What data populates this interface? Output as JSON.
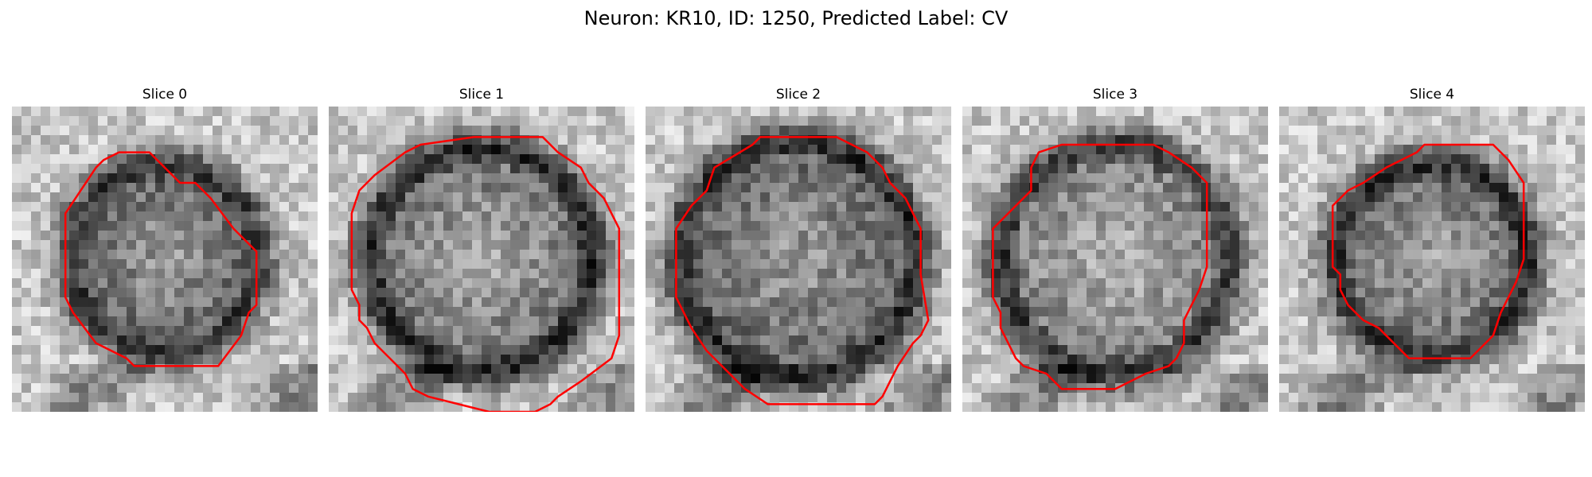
{
  "figure": {
    "title": "Neuron: KR10, ID: 1250, Predicted Label: CV"
  },
  "colors": {
    "contour": "#ff0000",
    "background": "#ffffff"
  },
  "slices": [
    {
      "title": "Slice 0",
      "ring_darkness": 0.55,
      "ring_radius": 0.3,
      "center_brightness": 0.62,
      "contour": [
        [
          14,
          6
        ],
        [
          18,
          6
        ],
        [
          22,
          10
        ],
        [
          24,
          10
        ],
        [
          26,
          12
        ],
        [
          29,
          16
        ],
        [
          32,
          19
        ],
        [
          32,
          26
        ],
        [
          31,
          27
        ],
        [
          30,
          30
        ],
        [
          27,
          34
        ],
        [
          16,
          34
        ],
        [
          15,
          33
        ],
        [
          11,
          31
        ],
        [
          8,
          27
        ],
        [
          7,
          25
        ],
        [
          7,
          14
        ],
        [
          9,
          11
        ],
        [
          11,
          8
        ],
        [
          12,
          7
        ]
      ]
    },
    {
      "title": "Slice 1",
      "ring_darkness": 0.6,
      "ring_radius": 0.36,
      "center_brightness": 0.68,
      "contour": [
        [
          12,
          5
        ],
        [
          19,
          4
        ],
        [
          28,
          4
        ],
        [
          30,
          6
        ],
        [
          33,
          8
        ],
        [
          34,
          10
        ],
        [
          36,
          12
        ],
        [
          37,
          14
        ],
        [
          38,
          16
        ],
        [
          38,
          30
        ],
        [
          37,
          33
        ],
        [
          33,
          36
        ],
        [
          30,
          38
        ],
        [
          29,
          39
        ],
        [
          27,
          40
        ],
        [
          21,
          40
        ],
        [
          17,
          39
        ],
        [
          13,
          38
        ],
        [
          11,
          37
        ],
        [
          10,
          35
        ],
        [
          8,
          33
        ],
        [
          6,
          31
        ],
        [
          5,
          29
        ],
        [
          4,
          28
        ],
        [
          4,
          26
        ],
        [
          3,
          24
        ],
        [
          3,
          14
        ],
        [
          4,
          11
        ],
        [
          6,
          9
        ],
        [
          10,
          6
        ]
      ]
    },
    {
      "title": "Slice 2",
      "ring_darkness": 0.6,
      "ring_radius": 0.38,
      "center_brightness": 0.62,
      "contour": [
        [
          14,
          5
        ],
        [
          15,
          4
        ],
        [
          25,
          4
        ],
        [
          29,
          6
        ],
        [
          31,
          8
        ],
        [
          32,
          10
        ],
        [
          34,
          12
        ],
        [
          35,
          14
        ],
        [
          36,
          16
        ],
        [
          36,
          22
        ],
        [
          37,
          28
        ],
        [
          36,
          30
        ],
        [
          35,
          31
        ],
        [
          33,
          34
        ],
        [
          32,
          36
        ],
        [
          31,
          38
        ],
        [
          30,
          39
        ],
        [
          16,
          39
        ],
        [
          13,
          37
        ],
        [
          11,
          35
        ],
        [
          8,
          32
        ],
        [
          6,
          29
        ],
        [
          5,
          27
        ],
        [
          4,
          25
        ],
        [
          4,
          16
        ],
        [
          6,
          13
        ],
        [
          8,
          11
        ],
        [
          9,
          8
        ]
      ]
    },
    {
      "title": "Slice 3",
      "ring_darkness": 0.55,
      "ring_radius": 0.37,
      "center_brightness": 0.72,
      "contour": [
        [
          10,
          6
        ],
        [
          13,
          5
        ],
        [
          25,
          5
        ],
        [
          27,
          6
        ],
        [
          30,
          8
        ],
        [
          32,
          10
        ],
        [
          32,
          21
        ],
        [
          31,
          24
        ],
        [
          30,
          26
        ],
        [
          29,
          28
        ],
        [
          29,
          31
        ],
        [
          28,
          33
        ],
        [
          27,
          34
        ],
        [
          24,
          35
        ],
        [
          22,
          36
        ],
        [
          20,
          37
        ],
        [
          13,
          37
        ],
        [
          11,
          35
        ],
        [
          8,
          34
        ],
        [
          7,
          33
        ],
        [
          6,
          31
        ],
        [
          5,
          29
        ],
        [
          5,
          27
        ],
        [
          4,
          25
        ],
        [
          4,
          16
        ],
        [
          5,
          15
        ],
        [
          7,
          13
        ],
        [
          9,
          11
        ],
        [
          9,
          8
        ]
      ]
    },
    {
      "title": "Slice 4",
      "ring_darkness": 0.58,
      "ring_radius": 0.31,
      "center_brightness": 0.66,
      "contour": [
        [
          14,
          8
        ],
        [
          16,
          7
        ],
        [
          18,
          6
        ],
        [
          19,
          5
        ],
        [
          28,
          5
        ],
        [
          29,
          6
        ],
        [
          30,
          7
        ],
        [
          32,
          10
        ],
        [
          32,
          20
        ],
        [
          31,
          23
        ],
        [
          30,
          25
        ],
        [
          29,
          27
        ],
        [
          28,
          30
        ],
        [
          26,
          32
        ],
        [
          25,
          33
        ],
        [
          17,
          33
        ],
        [
          16,
          32
        ],
        [
          15,
          31
        ],
        [
          13,
          29
        ],
        [
          11,
          28
        ],
        [
          10,
          27
        ],
        [
          9,
          26
        ],
        [
          8,
          24
        ],
        [
          8,
          22
        ],
        [
          7,
          21
        ],
        [
          7,
          13
        ],
        [
          9,
          11
        ],
        [
          11,
          10
        ]
      ]
    }
  ]
}
